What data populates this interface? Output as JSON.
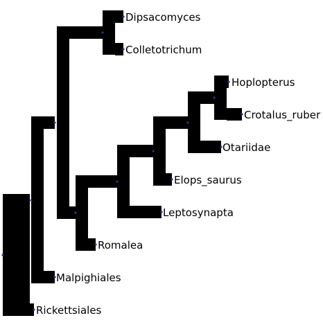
{
  "tree": {
    "colors": {
      "branch": "#000000",
      "node": "#1f3a93",
      "background": "#ffffff"
    },
    "leaves": [
      {
        "id": "dipsacomyces",
        "label": "Dipsacomyces"
      },
      {
        "id": "colletotrichum",
        "label": "Colletotrichum"
      },
      {
        "id": "hoplopterus",
        "label": "Hoplopterus"
      },
      {
        "id": "crotalus_ruber",
        "label": "Crotalus_ruber"
      },
      {
        "id": "otariidae",
        "label": "Otariidae"
      },
      {
        "id": "elops_saurus",
        "label": "Elops_saurus"
      },
      {
        "id": "leptosynapta",
        "label": "Leptosynapta"
      },
      {
        "id": "romalea",
        "label": "Romalea"
      },
      {
        "id": "malpighiales",
        "label": "Malpighiales"
      },
      {
        "id": "rickettsiales",
        "label": "Rickettsiales"
      }
    ]
  }
}
